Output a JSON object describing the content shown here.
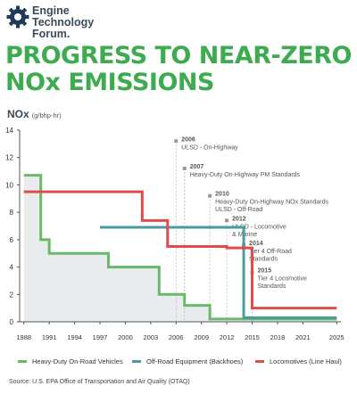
{
  "brand": {
    "line1": "Engine",
    "line2": "Technology",
    "line3": "Forum.",
    "green": "#3dab4f",
    "dark": "#3a4a59"
  },
  "title": {
    "line1": "PROGRESS TO NEAR-ZERO",
    "line2": "NOx EMISSIONS"
  },
  "source": "Source: U.S. EPA Office of Transportation and Air Quality (OTAQ)",
  "chart_data": {
    "type": "line",
    "step": true,
    "ylabel": "NOx",
    "yunit": "(g/bhp-hr)",
    "ylim": [
      0,
      14
    ],
    "yticks": [
      0,
      2,
      4,
      6,
      8,
      10,
      12,
      14
    ],
    "xlim": [
      1987.5,
      2025.5
    ],
    "xticks": [
      1988,
      1991,
      1994,
      1997,
      2000,
      2003,
      2006,
      2009,
      2012,
      2015,
      2018,
      2021,
      2025
    ],
    "grid": false,
    "legend": "bottom",
    "series": [
      {
        "name": "Heavy-Duty On-Road Vehicles",
        "color": "#69b96a",
        "x": [
          1988,
          1990,
          1990,
          1991,
          1991,
          1998,
          1998,
          2004,
          2004,
          2007,
          2007,
          2010,
          2010,
          2025
        ],
        "y": [
          10.7,
          10.7,
          6.0,
          6.0,
          5.0,
          5.0,
          4.0,
          4.0,
          2.0,
          2.0,
          1.2,
          1.2,
          0.2,
          0.2
        ]
      },
      {
        "name": "Off-Road Equipment (Backhoes)",
        "color": "#4a9aa1",
        "x": [
          1997,
          2014,
          2014,
          2025
        ],
        "y": [
          6.9,
          6.9,
          0.3,
          0.3
        ]
      },
      {
        "name": "Locomotives (Line Haul)",
        "color": "#e04c4a",
        "x": [
          1988,
          2002,
          2002,
          2005,
          2005,
          2012,
          2012,
          2015,
          2015,
          2025
        ],
        "y": [
          9.5,
          9.5,
          7.4,
          7.4,
          5.5,
          5.5,
          5.4,
          5.4,
          1.0,
          1.0
        ]
      }
    ],
    "annotations": [
      {
        "year": "2006",
        "text": "ULSD - On-Highway",
        "x": 2006,
        "y": 13.2
      },
      {
        "year": "2007",
        "text": "Heavy-Duty On-Highway PM Standards",
        "x": 2007,
        "y": 11.2
      },
      {
        "year": "2010",
        "text": "Heavy-Duty On-Highway NOx Standards\nULSD - Off-Road",
        "x": 2010,
        "y": 9.2
      },
      {
        "year": "2012",
        "text": "ULSD - Locomotive\n& Marine",
        "x": 2012,
        "y": 7.4
      },
      {
        "year": "2014",
        "text": "Tier 4 Off-Road\nStandards",
        "x": 2014,
        "y": 5.6
      },
      {
        "year": "2015",
        "text": "Tier 4 Locomotive\nStandards",
        "x": 2015,
        "y": 3.6
      }
    ]
  }
}
